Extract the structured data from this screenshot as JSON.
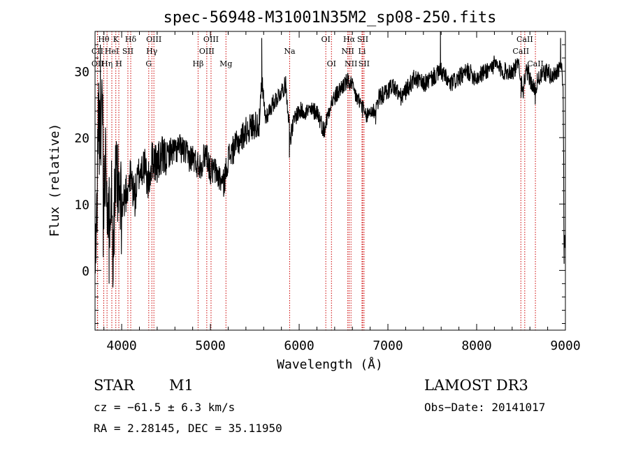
{
  "chart_data": {
    "type": "line",
    "title": "spec-56948-M31001N35M2_sp08-250.fits",
    "xlabel": "Wavelength (Å)",
    "ylabel": "Flux (relative)",
    "xlim": [
      3700,
      9000
    ],
    "ylim": [
      -9,
      36
    ],
    "xticks": [
      4000,
      5000,
      6000,
      7000,
      8000,
      9000
    ],
    "yticks": [
      0,
      10,
      20,
      30
    ],
    "line_color": "#000000",
    "marker_color": "#cc0000",
    "spectral_lines": [
      {
        "label": "Hθ",
        "wavelength": 3798,
        "row": 0
      },
      {
        "label": "CII",
        "wavelength": 3727,
        "row": 1
      },
      {
        "label": "OII",
        "wavelength": 3729,
        "row": 2
      },
      {
        "label": "K",
        "wavelength": 3934,
        "row": 0
      },
      {
        "label": "HeI",
        "wavelength": 3889,
        "row": 1
      },
      {
        "label": "Hη",
        "wavelength": 3835,
        "row": 2
      },
      {
        "label": "H",
        "wavelength": 3968,
        "row": 2
      },
      {
        "label": "SII",
        "wavelength": 4070,
        "row": 1
      },
      {
        "label": "Hδ",
        "wavelength": 4102,
        "row": 0
      },
      {
        "label": "OIII",
        "wavelength": 4363,
        "row": 0
      },
      {
        "label": "Hγ",
        "wavelength": 4340,
        "row": 1
      },
      {
        "label": "G",
        "wavelength": 4305,
        "row": 2
      },
      {
        "label": "OIII",
        "wavelength": 5007,
        "row": 0
      },
      {
        "label": "OIII",
        "wavelength": 4959,
        "row": 1
      },
      {
        "label": "Hβ",
        "wavelength": 4861,
        "row": 2
      },
      {
        "label": "Mg",
        "wavelength": 5175,
        "row": 2
      },
      {
        "label": "Na",
        "wavelength": 5893,
        "row": 1
      },
      {
        "label": "OI",
        "wavelength": 6300,
        "row": 0
      },
      {
        "label": "OI",
        "wavelength": 6364,
        "row": 2
      },
      {
        "label": "Hα",
        "wavelength": 6563,
        "row": 0
      },
      {
        "label": "SII",
        "wavelength": 6716,
        "row": 0
      },
      {
        "label": "NII",
        "wavelength": 6548,
        "row": 1
      },
      {
        "label": "Li",
        "wavelength": 6708,
        "row": 1
      },
      {
        "label": "NII",
        "wavelength": 6584,
        "row": 2
      },
      {
        "label": "SII",
        "wavelength": 6731,
        "row": 2
      },
      {
        "label": "CaII",
        "wavelength": 8542,
        "row": 0
      },
      {
        "label": "CaII",
        "wavelength": 8498,
        "row": 1
      },
      {
        "label": "CaII",
        "wavelength": 8662,
        "row": 2
      }
    ],
    "continuum": [
      [
        3700,
        0
      ],
      [
        3720,
        8
      ],
      [
        3740,
        26
      ],
      [
        3760,
        14
      ],
      [
        3780,
        30
      ],
      [
        3800,
        10
      ],
      [
        3820,
        20
      ],
      [
        3850,
        6
      ],
      [
        3880,
        14
      ],
      [
        3900,
        4
      ],
      [
        3930,
        13
      ],
      [
        3960,
        12
      ],
      [
        4000,
        9
      ],
      [
        4050,
        12
      ],
      [
        4100,
        14
      ],
      [
        4150,
        11
      ],
      [
        4200,
        15
      ],
      [
        4250,
        16
      ],
      [
        4300,
        13
      ],
      [
        4350,
        17
      ],
      [
        4400,
        16
      ],
      [
        4450,
        17
      ],
      [
        4500,
        17
      ],
      [
        4550,
        18
      ],
      [
        4600,
        18
      ],
      [
        4650,
        18.5
      ],
      [
        4700,
        18
      ],
      [
        4750,
        17
      ],
      [
        4800,
        17
      ],
      [
        4850,
        16
      ],
      [
        4900,
        16
      ],
      [
        4950,
        18
      ],
      [
        5000,
        15
      ],
      [
        5050,
        15
      ],
      [
        5100,
        14
      ],
      [
        5150,
        13
      ],
      [
        5200,
        17
      ],
      [
        5250,
        18
      ],
      [
        5300,
        19
      ],
      [
        5400,
        21
      ],
      [
        5500,
        22
      ],
      [
        5550,
        22
      ],
      [
        5580,
        28
      ],
      [
        5620,
        23
      ],
      [
        5700,
        25
      ],
      [
        5800,
        27
      ],
      [
        5850,
        28
      ],
      [
        5900,
        20
      ],
      [
        5950,
        23
      ],
      [
        6000,
        24
      ],
      [
        6100,
        24
      ],
      [
        6200,
        24
      ],
      [
        6280,
        21
      ],
      [
        6350,
        25
      ],
      [
        6400,
        26
      ],
      [
        6450,
        27
      ],
      [
        6500,
        28
      ],
      [
        6560,
        28.5
      ],
      [
        6600,
        27.5
      ],
      [
        6650,
        26
      ],
      [
        6700,
        25
      ],
      [
        6750,
        23
      ],
      [
        6800,
        24
      ],
      [
        6850,
        24
      ],
      [
        6900,
        26
      ],
      [
        7000,
        27
      ],
      [
        7050,
        28
      ],
      [
        7150,
        26
      ],
      [
        7250,
        28
      ],
      [
        7300,
        29
      ],
      [
        7400,
        28
      ],
      [
        7500,
        29
      ],
      [
        7600,
        30
      ],
      [
        7700,
        28
      ],
      [
        7800,
        29
      ],
      [
        7900,
        30
      ],
      [
        8000,
        29
      ],
      [
        8100,
        30
      ],
      [
        8200,
        31
      ],
      [
        8300,
        30
      ],
      [
        8400,
        30
      ],
      [
        8480,
        31
      ],
      [
        8520,
        27
      ],
      [
        8560,
        30
      ],
      [
        8600,
        29
      ],
      [
        8650,
        27
      ],
      [
        8700,
        29
      ],
      [
        8800,
        30
      ],
      [
        8850,
        29
      ],
      [
        8900,
        30
      ],
      [
        8950,
        31
      ],
      [
        8975,
        28
      ],
      [
        8985,
        3
      ],
      [
        9000,
        5
      ]
    ],
    "features": [
      {
        "x": 3760,
        "y": 34
      },
      {
        "x": 3792,
        "y": 2
      },
      {
        "x": 3858,
        "y": -2
      },
      {
        "x": 5578,
        "y": 35
      },
      {
        "x": 5890,
        "y": 17
      },
      {
        "x": 6280,
        "y": 20
      },
      {
        "x": 6862,
        "y": 22
      },
      {
        "x": 7592,
        "y": 37
      },
      {
        "x": 8195,
        "y": 32
      },
      {
        "x": 8500,
        "y": 26
      },
      {
        "x": 8660,
        "y": 25
      },
      {
        "x": 8946,
        "y": 35
      },
      {
        "x": 8985,
        "y": 1
      }
    ],
    "noise_seed": 11
  },
  "info": {
    "object_class": "STAR",
    "subclass": "M1",
    "survey": "LAMOST DR3",
    "redshift": "cz = −61.5 ± 6.3 km/s",
    "obs_date": "Obs−Date: 20141017",
    "coords": "RA =   2.28145, DEC =  35.11950"
  }
}
